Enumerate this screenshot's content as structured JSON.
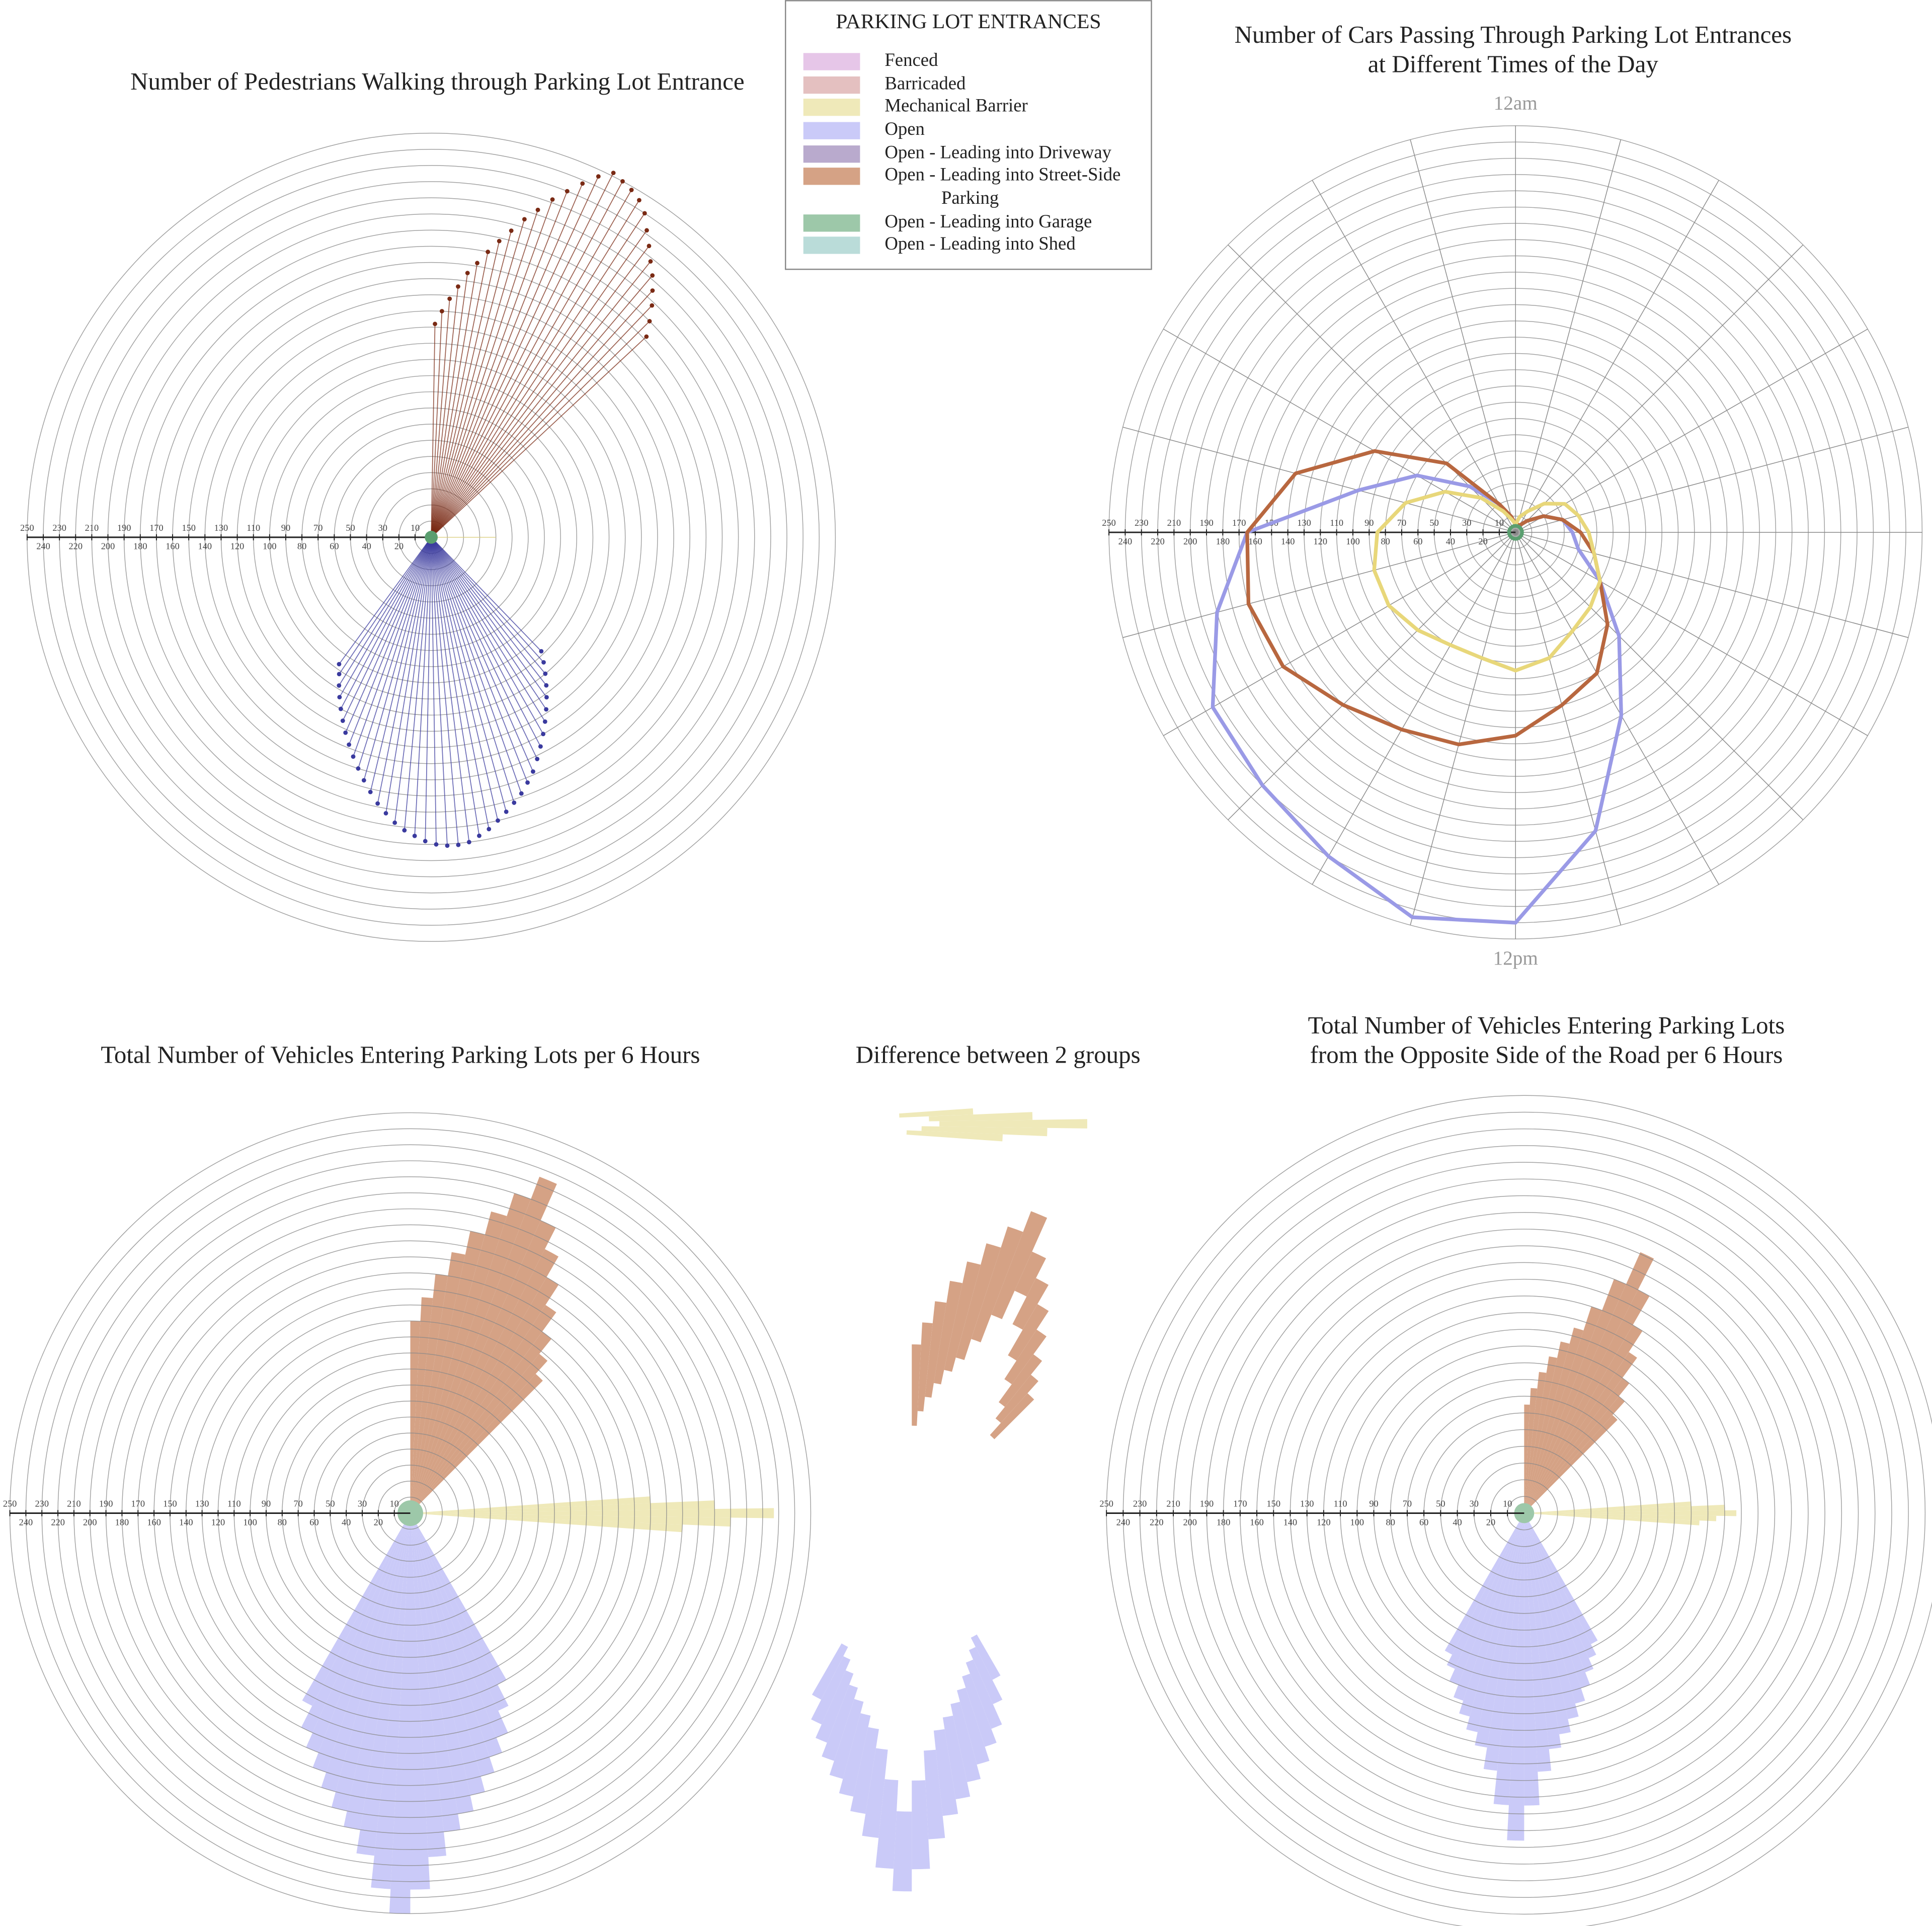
{
  "legend": {
    "title": "PARKING LOT ENTRANCES",
    "items": [
      {
        "label": "Fenced",
        "color": "#e6c6e8"
      },
      {
        "label": "Barricaded",
        "color": "#e4c0c0"
      },
      {
        "label": "Mechanical Barrier",
        "color": "#efe9b9"
      },
      {
        "label": "Open",
        "color": "#cacaf8"
      },
      {
        "label": "Open - Leading into Driveway",
        "color": "#b9aacd"
      },
      {
        "label": "Open - Leading into Street-Side Parking",
        "color": "#d5a285"
      },
      {
        "label": "Open - Leading into Garage",
        "color": "#9dc8a9"
      },
      {
        "label": "Open - Leading into Shed",
        "color": "#badcd9"
      }
    ]
  },
  "chart_data": [
    {
      "type": "radial_rays",
      "title": [
        "Number of Pedestrians Walking through Parking Lot Entrance"
      ],
      "rlim": [
        0,
        250
      ],
      "rticks": [
        10,
        20,
        30,
        40,
        50,
        60,
        70,
        80,
        90,
        100,
        110,
        120,
        130,
        140,
        150,
        160,
        170,
        180,
        190,
        200,
        210,
        220,
        230,
        240,
        250
      ],
      "series": [
        {
          "color": "#7a2a14",
          "values": [
            132,
            140,
            148,
            156,
            165,
            172,
            180,
            188,
            196,
            205,
            213,
            222,
            230,
            238,
            246,
            252,
            250,
            248,
            245,
            240,
            232,
            225,
            218,
            212,
            205,
            198,
            190,
            182
          ]
        },
        {
          "color": "#3a3a9e",
          "values": [
            98,
            104,
            110,
            116,
            122,
            128,
            134,
            140,
            146,
            152,
            158,
            163,
            168,
            172,
            176,
            180,
            184,
            187,
            190,
            191,
            191,
            190,
            188,
            185,
            182,
            178,
            173,
            168,
            162,
            156,
            150,
            144,
            138,
            132,
            126,
            120,
            114,
            108,
            102,
            97
          ]
        },
        {
          "color": "#d9cc7a",
          "values": [
            40
          ]
        },
        {
          "color": "#5a9e6f",
          "values": [
            4
          ]
        }
      ]
    },
    {
      "type": "polar_line",
      "title": [
        "Number of Cars Passing Through Parking Lot Entrances",
        "at Different Times of the Day"
      ],
      "categories": [
        "12am",
        null,
        null,
        null,
        null,
        null,
        null,
        null,
        null,
        null,
        null,
        null,
        "12pm",
        null,
        null,
        null,
        null,
        null,
        null,
        null,
        null,
        null,
        null,
        null
      ],
      "rlim": [
        0,
        250
      ],
      "rticks": [
        10,
        20,
        30,
        40,
        50,
        60,
        70,
        80,
        90,
        100,
        110,
        120,
        130,
        140,
        150,
        160,
        170,
        180,
        190,
        200,
        210,
        220,
        230,
        240,
        250
      ],
      "series": [
        {
          "color": "#9a9ae6",
          "values": [
            5,
            5,
            5,
            10,
            20,
            30,
            35,
            40,
            60,
            90,
            130,
            190,
            240,
            245,
            230,
            220,
            215,
            190,
            165,
            100,
            70,
            40,
            20,
            10
          ]
        },
        {
          "color": "#b8673f",
          "values": [
            5,
            5,
            5,
            10,
            20,
            30,
            40,
            50,
            60,
            80,
            100,
            110,
            125,
            135,
            140,
            150,
            165,
            170,
            165,
            140,
            100,
            60,
            20,
            10
          ]
        },
        {
          "color": "#e8d77a",
          "values": [
            5,
            10,
            15,
            25,
            35,
            40,
            45,
            50,
            60,
            65,
            70,
            80,
            85,
            80,
            80,
            85,
            90,
            90,
            85,
            70,
            50,
            30,
            15,
            8
          ]
        },
        {
          "color": "#5a9e6f",
          "values": [
            4,
            4,
            4,
            4,
            4,
            4,
            4,
            4,
            4,
            4,
            4,
            4,
            4,
            4,
            4,
            4,
            4,
            4,
            4,
            4,
            4,
            4,
            4,
            4
          ]
        }
      ]
    },
    {
      "type": "radial_steps",
      "title": [
        "Total Number of Vehicles Entering Parking Lots per 6 Hours"
      ],
      "rlim": [
        0,
        250
      ],
      "rticks": [
        10,
        20,
        30,
        40,
        50,
        60,
        70,
        80,
        90,
        100,
        110,
        120,
        130,
        140,
        150,
        160,
        170,
        180,
        190,
        200,
        210,
        220,
        230,
        240,
        250
      ],
      "series": [
        {
          "color": "#d5a285",
          "values": [
            120,
            135,
            150,
            165,
            180,
            195,
            210,
            225,
            200,
            185,
            170,
            155,
            140,
            128,
            117
          ]
        },
        {
          "color": "#efe9b9",
          "values": [
            150,
            190,
            227,
            200,
            170
          ]
        },
        {
          "color": "#cacaf8",
          "values": [
            120,
            135,
            150,
            160,
            170,
            180,
            190,
            200,
            215,
            235,
            250,
            235,
            215,
            200,
            190,
            180,
            170,
            160,
            150,
            135
          ]
        },
        {
          "color": "#9dc8a9",
          "values": [
            8
          ]
        }
      ]
    },
    {
      "type": "difference",
      "title": [
        "Difference between 2 groups"
      ]
    },
    {
      "type": "radial_steps",
      "title": [
        "Total Number of Vehicles Entering Parking Lots",
        "from the Opposite Side of the Road per 6 Hours"
      ],
      "rlim": [
        0,
        250
      ],
      "rticks": [
        10,
        20,
        30,
        40,
        50,
        60,
        70,
        80,
        90,
        100,
        110,
        120,
        130,
        140,
        150,
        160,
        170,
        180,
        190,
        200,
        210,
        220,
        230,
        240,
        250
      ],
      "series": [
        {
          "color": "#d5a285",
          "values": [
            65,
            75,
            85,
            95,
            105,
            115,
            130,
            150,
            171,
            150,
            130,
            115,
            100,
            90,
            79
          ]
        },
        {
          "color": "#efe9b9",
          "values": [
            100,
            120,
            127,
            115,
            105
          ]
        },
        {
          "color": "#cacaf8",
          "values": [
            88,
            95,
            102,
            110,
            118,
            126,
            134,
            142,
            155,
            175,
            196,
            175,
            155,
            142,
            134,
            126,
            118,
            110,
            102,
            95
          ]
        },
        {
          "color": "#9dc8a9",
          "values": [
            6
          ]
        }
      ]
    }
  ]
}
